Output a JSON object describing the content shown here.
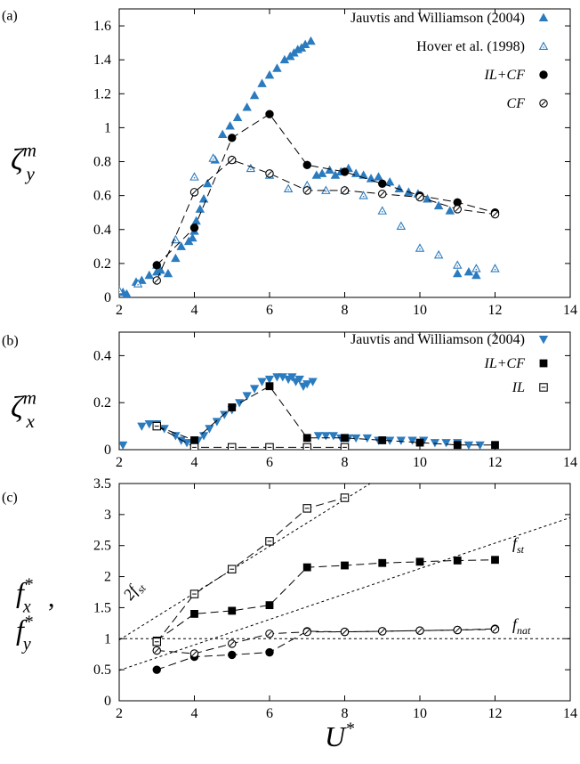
{
  "colors": {
    "blue": "#2b7bbf",
    "black": "#000000"
  },
  "chart_data": [
    {
      "type": "scatter",
      "panel_label": "(a)",
      "ylabel": "ζ_y^m",
      "xlim": [
        2,
        14
      ],
      "ylim": [
        0,
        1.7
      ],
      "xticks": [
        2,
        4,
        6,
        8,
        10,
        12,
        14
      ],
      "yticks": [
        0,
        0.2,
        0.4,
        0.6,
        0.8,
        1,
        1.2,
        1.4,
        1.6
      ],
      "legend_position": "top-right",
      "series": [
        {
          "name": "Jauvtis and Williamson (2004)",
          "marker": "triangle-up-filled",
          "color": "#2b7bbf",
          "x": [
            2.1,
            2.2,
            2.45,
            2.6,
            2.8,
            3.0,
            3.1,
            3.3,
            3.5,
            3.65,
            3.85,
            3.95,
            4.0,
            4.05,
            4.15,
            4.25,
            4.35,
            4.55,
            4.75,
            4.95,
            5.15,
            5.4,
            5.6,
            5.8,
            6.0,
            6.2,
            6.4,
            6.55,
            6.65,
            6.75,
            6.85,
            6.95,
            7.1,
            7.25,
            7.4,
            7.6,
            7.75,
            7.9,
            8.1,
            8.3,
            8.5,
            8.7,
            8.9,
            9.2,
            9.45,
            9.7,
            9.95,
            10.2,
            10.5,
            10.8,
            11.0,
            11.3,
            11.5
          ],
          "y": [
            0.03,
            0.02,
            0.09,
            0.1,
            0.13,
            0.15,
            0.16,
            0.14,
            0.23,
            0.3,
            0.33,
            0.35,
            0.39,
            0.45,
            0.52,
            0.58,
            0.67,
            0.81,
            0.96,
            1.01,
            1.06,
            1.12,
            1.19,
            1.26,
            1.31,
            1.35,
            1.4,
            1.42,
            1.44,
            1.46,
            1.47,
            1.49,
            1.51,
            0.72,
            0.73,
            0.75,
            0.72,
            0.74,
            0.76,
            0.73,
            0.72,
            0.7,
            0.71,
            0.68,
            0.64,
            0.62,
            0.61,
            0.58,
            0.54,
            0.51,
            0.14,
            0.15,
            0.13
          ]
        },
        {
          "name": "Hover et al. (1998)",
          "marker": "triangle-up-open",
          "color": "#2b7bbf",
          "x": [
            2.0,
            2.5,
            3.0,
            3.5,
            4.0,
            4.5,
            5.0,
            5.5,
            6.0,
            6.5,
            7.0,
            7.5,
            8.0,
            8.5,
            9.0,
            9.5,
            10.0,
            10.5,
            11.0,
            11.5,
            12.0
          ],
          "y": [
            0.04,
            0.08,
            0.19,
            0.34,
            0.71,
            0.82,
            0.81,
            0.76,
            0.72,
            0.64,
            0.66,
            0.63,
            0.63,
            0.6,
            0.51,
            0.42,
            0.29,
            0.25,
            0.19,
            0.17,
            0.17
          ]
        },
        {
          "name": "IL+CF",
          "marker": "circle-filled",
          "color": "#000000",
          "line": "dashed",
          "x": [
            3,
            4,
            5,
            6,
            7,
            8,
            9,
            10,
            11,
            12
          ],
          "y": [
            0.19,
            0.41,
            0.94,
            1.08,
            0.78,
            0.74,
            0.67,
            0.6,
            0.56,
            0.5
          ]
        },
        {
          "name": "CF",
          "marker": "circle-open-dot",
          "color": "#000000",
          "line": "dashed",
          "x": [
            3,
            4,
            5,
            6,
            7,
            8,
            9,
            10,
            11,
            12
          ],
          "y": [
            0.1,
            0.62,
            0.81,
            0.73,
            0.63,
            0.63,
            0.61,
            0.59,
            0.52,
            0.49
          ]
        }
      ]
    },
    {
      "type": "scatter",
      "panel_label": "(b)",
      "ylabel": "ζ_x^m",
      "xlim": [
        2,
        14
      ],
      "ylim": [
        0,
        0.5
      ],
      "xticks": [
        2,
        4,
        6,
        8,
        10,
        12,
        14
      ],
      "yticks": [
        0,
        0.2,
        0.4
      ],
      "legend_position": "top-right",
      "series": [
        {
          "name": "Jauvtis and Williamson (2004)",
          "marker": "triangle-down-filled",
          "color": "#2b7bbf",
          "x": [
            2.1,
            2.6,
            2.8,
            3.0,
            3.2,
            3.5,
            3.65,
            3.8,
            3.95,
            4.1,
            4.25,
            4.4,
            4.6,
            4.8,
            5.0,
            5.2,
            5.4,
            5.6,
            5.8,
            6.0,
            6.2,
            6.35,
            6.5,
            6.6,
            6.7,
            6.8,
            6.9,
            7.0,
            7.15,
            7.3,
            7.5,
            7.7,
            7.9,
            8.1,
            8.3,
            8.6,
            8.9,
            9.2,
            9.5,
            9.8,
            10.1,
            10.4,
            10.7,
            11.0,
            11.3,
            11.6
          ],
          "y": [
            0.02,
            0.1,
            0.11,
            0.11,
            0.09,
            0.06,
            0.04,
            0.03,
            0.03,
            0.04,
            0.06,
            0.09,
            0.12,
            0.15,
            0.17,
            0.2,
            0.23,
            0.26,
            0.29,
            0.3,
            0.31,
            0.31,
            0.3,
            0.31,
            0.29,
            0.3,
            0.27,
            0.28,
            0.29,
            0.06,
            0.06,
            0.06,
            0.05,
            0.05,
            0.05,
            0.05,
            0.04,
            0.04,
            0.04,
            0.04,
            0.04,
            0.03,
            0.03,
            0.03,
            0.02,
            0.02
          ]
        },
        {
          "name": "IL+CF",
          "marker": "square-filled",
          "color": "#000000",
          "line": "dashed",
          "x": [
            3,
            4,
            5,
            6,
            7,
            8,
            9,
            10,
            11,
            12
          ],
          "y": [
            0.1,
            0.04,
            0.18,
            0.27,
            0.05,
            0.05,
            0.04,
            0.03,
            0.02,
            0.02
          ]
        },
        {
          "name": "IL",
          "marker": "square-open-dot",
          "color": "#000000",
          "line": "dashed",
          "x": [
            3,
            4,
            5,
            6,
            7,
            8
          ],
          "y": [
            0.1,
            0.01,
            0.01,
            0.01,
            0.01,
            0.01
          ]
        }
      ]
    },
    {
      "type": "scatter",
      "panel_label": "(c)",
      "xlabel": "U*",
      "ylabel": "f_x^*, f_y^*",
      "xlim": [
        2,
        14
      ],
      "ylim": [
        0,
        3.5
      ],
      "xticks": [
        2,
        4,
        6,
        8,
        10,
        12,
        14
      ],
      "yticks": [
        0,
        0.5,
        1,
        1.5,
        2,
        2.5,
        3,
        3.5
      ],
      "series": [
        {
          "marker": "square-filled",
          "color": "#000000",
          "line": "dashed",
          "x": [
            3,
            4,
            5,
            6,
            7,
            8,
            9,
            10,
            11,
            12
          ],
          "y": [
            0.97,
            1.4,
            1.45,
            1.54,
            2.15,
            2.18,
            2.22,
            2.24,
            2.26,
            2.27
          ]
        },
        {
          "marker": "square-open-dot",
          "color": "#000000",
          "line": "dashed",
          "x": [
            3,
            4,
            5,
            6,
            7,
            8
          ],
          "y": [
            0.95,
            1.72,
            2.12,
            2.57,
            3.1,
            3.27
          ]
        },
        {
          "marker": "circle-filled",
          "color": "#000000",
          "line": "dashed",
          "x": [
            3,
            4,
            5,
            6,
            7,
            8,
            9,
            10,
            11,
            12
          ],
          "y": [
            0.5,
            0.71,
            0.74,
            0.78,
            1.12,
            1.11,
            1.12,
            1.13,
            1.14,
            1.16
          ]
        },
        {
          "marker": "circle-open-dot",
          "color": "#000000",
          "line": "dashed",
          "x": [
            3,
            4,
            5,
            6,
            7,
            8,
            9,
            10,
            11,
            12
          ],
          "y": [
            0.81,
            0.76,
            0.92,
            1.08,
            1.11,
            1.11,
            1.12,
            1.13,
            1.14,
            1.15
          ]
        }
      ],
      "reference_lines": [
        {
          "label": "f_nat",
          "x": [
            2,
            14
          ],
          "y": [
            1.0,
            1.0
          ]
        },
        {
          "label": "f_st",
          "x": [
            2,
            14
          ],
          "y": [
            0.49,
            2.95
          ]
        },
        {
          "label": "2f_st",
          "x": [
            2,
            8.68
          ],
          "y": [
            0.98,
            3.5
          ]
        }
      ]
    }
  ]
}
